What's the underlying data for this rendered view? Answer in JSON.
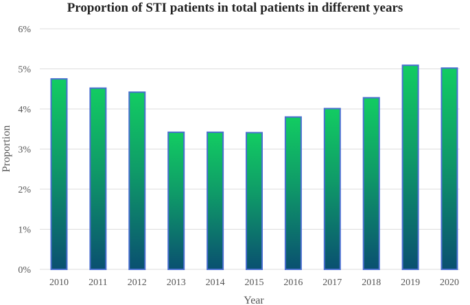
{
  "chart_data": {
    "type": "bar",
    "title": "Proportion of STI patients in total patients in different years",
    "xlabel": "Year",
    "ylabel": "Proportion",
    "categories": [
      "2010",
      "2011",
      "2012",
      "2013",
      "2014",
      "2015",
      "2016",
      "2017",
      "2018",
      "2019",
      "2020"
    ],
    "values": [
      4.75,
      4.52,
      4.42,
      3.42,
      3.42,
      3.41,
      3.8,
      4.01,
      4.28,
      5.09,
      5.02
    ],
    "ylim": [
      0,
      6
    ],
    "yticks": [
      0,
      1,
      2,
      3,
      4,
      5,
      6
    ],
    "ytick_labels": [
      "0%",
      "1%",
      "2%",
      "3%",
      "4%",
      "5%",
      "6%"
    ],
    "grid": true,
    "colors": {
      "bar_top": "#12cc62",
      "bar_bottom": "#0a5070",
      "bar_border": "#4a6fd0",
      "grid": "#dddddd"
    }
  }
}
